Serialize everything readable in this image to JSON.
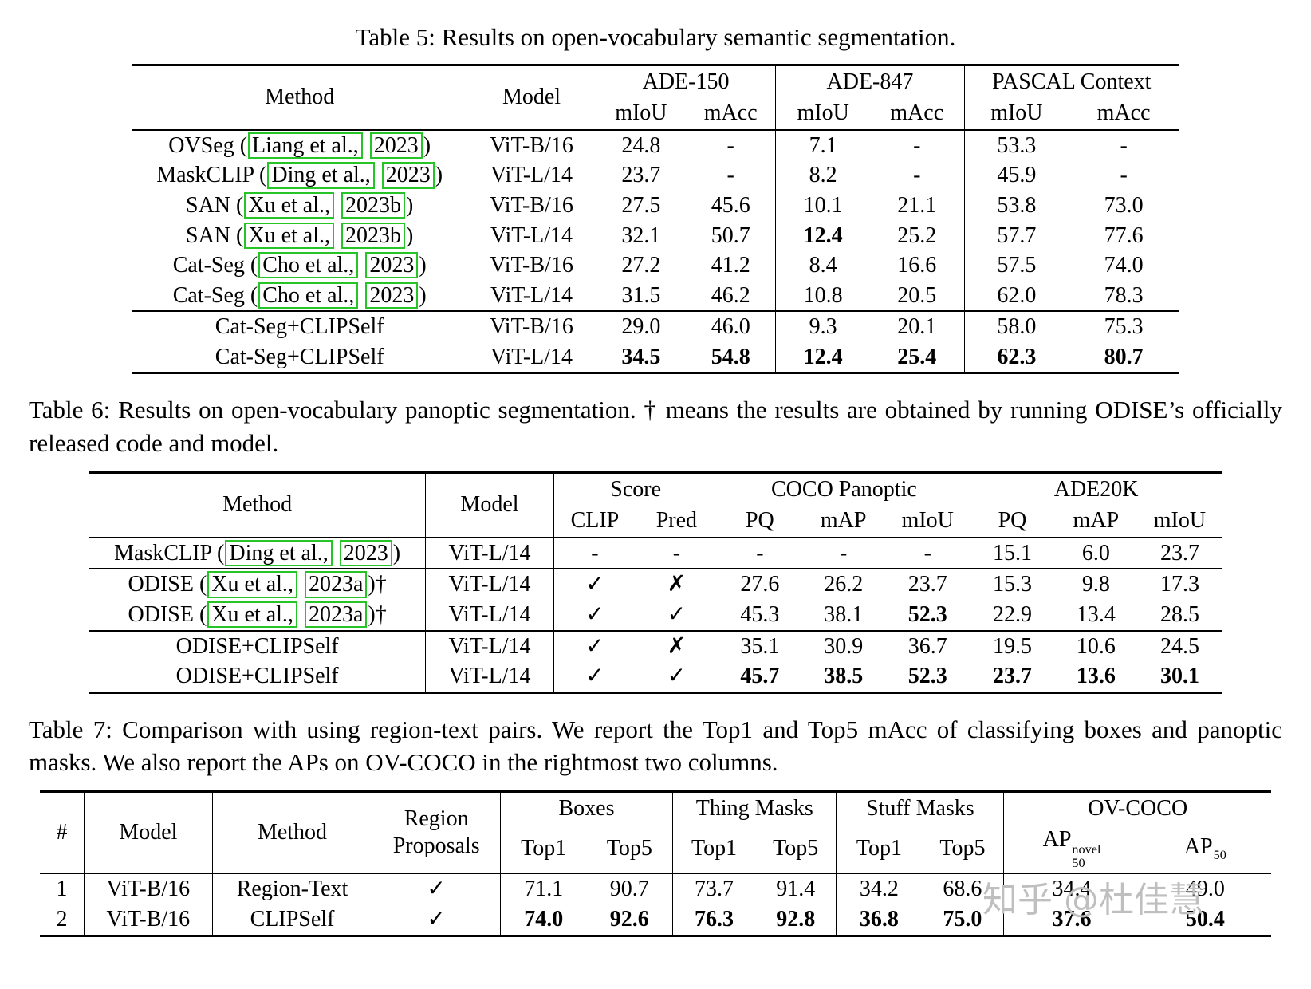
{
  "watermark": "知乎 @杜佳慧",
  "table5": {
    "caption": "Table 5: Results on open-vocabulary semantic segmentation.",
    "columns": [
      {
        "label": "Method"
      },
      {
        "label": "Model"
      },
      {
        "label": "ADE-150",
        "subs": [
          "mIoU",
          "mAcc"
        ]
      },
      {
        "label": "ADE-847",
        "subs": [
          "mIoU",
          "mAcc"
        ]
      },
      {
        "label": "PASCAL Context",
        "subs": [
          "mIoU",
          "mAcc"
        ]
      }
    ],
    "rows": [
      {
        "cells": [
          [
            {
              "t": "OVSeg ("
            },
            {
              "t": "Liang et al.,",
              "box": true
            },
            {
              "t": " "
            },
            {
              "t": "2023",
              "box": true
            },
            {
              "t": ")"
            }
          ],
          "ViT-B/16",
          "24.8",
          "-",
          "7.1",
          "-",
          "53.3",
          "-"
        ]
      },
      {
        "cells": [
          [
            {
              "t": "MaskCLIP ("
            },
            {
              "t": "Ding et al.,",
              "box": true
            },
            {
              "t": " "
            },
            {
              "t": "2023",
              "box": true
            },
            {
              "t": ")"
            }
          ],
          "ViT-L/14",
          "23.7",
          "-",
          "8.2",
          "-",
          "45.9",
          "-"
        ]
      },
      {
        "cells": [
          [
            {
              "t": "SAN ("
            },
            {
              "t": "Xu et al.,",
              "box": true
            },
            {
              "t": " "
            },
            {
              "t": "2023b",
              "box": true
            },
            {
              "t": ")"
            }
          ],
          "ViT-B/16",
          "27.5",
          "45.6",
          "10.1",
          "21.1",
          "53.8",
          "73.0"
        ]
      },
      {
        "cells": [
          [
            {
              "t": "SAN ("
            },
            {
              "t": "Xu et al.,",
              "box": true
            },
            {
              "t": " "
            },
            {
              "t": "2023b",
              "box": true
            },
            {
              "t": ")"
            }
          ],
          "ViT-L/14",
          "32.1",
          "50.7",
          [
            {
              "t": "12.4",
              "b": true
            }
          ],
          "25.2",
          "57.7",
          "77.6"
        ]
      },
      {
        "cells": [
          [
            {
              "t": "Cat-Seg ("
            },
            {
              "t": "Cho et al.,",
              "box": true
            },
            {
              "t": " "
            },
            {
              "t": "2023",
              "box": true
            },
            {
              "t": ")"
            }
          ],
          "ViT-B/16",
          "27.2",
          "41.2",
          "8.4",
          "16.6",
          "57.5",
          "74.0"
        ]
      },
      {
        "cells": [
          [
            {
              "t": "Cat-Seg ("
            },
            {
              "t": "Cho et al.,",
              "box": true
            },
            {
              "t": " "
            },
            {
              "t": "2023",
              "box": true
            },
            {
              "t": ")"
            }
          ],
          "ViT-L/14",
          "31.5",
          "46.2",
          "10.8",
          "20.5",
          "62.0",
          "78.3"
        ]
      },
      {
        "rule": true,
        "cells": [
          "Cat-Seg+CLIPSelf",
          "ViT-B/16",
          "29.0",
          "46.0",
          "9.3",
          "20.1",
          "58.0",
          "75.3"
        ]
      },
      {
        "cells": [
          "Cat-Seg+CLIPSelf",
          "ViT-L/14",
          [
            {
              "t": "34.5",
              "b": true
            }
          ],
          [
            {
              "t": "54.8",
              "b": true
            }
          ],
          [
            {
              "t": "12.4",
              "b": true
            }
          ],
          [
            {
              "t": "25.4",
              "b": true
            }
          ],
          [
            {
              "t": "62.3",
              "b": true
            }
          ],
          [
            {
              "t": "80.7",
              "b": true
            }
          ]
        ]
      }
    ]
  },
  "table6": {
    "caption": "Table 6: Results on open-vocabulary panoptic segmentation. † means the results are obtained by running ODISE’s officially released code and model.",
    "columns": [
      {
        "label": "Method"
      },
      {
        "label": "Model"
      },
      {
        "label": "Score",
        "subs": [
          "CLIP",
          "Pred"
        ]
      },
      {
        "label": "COCO Panoptic",
        "subs": [
          "PQ",
          "mAP",
          "mIoU"
        ]
      },
      {
        "label": "ADE20K",
        "subs": [
          "PQ",
          "mAP",
          "mIoU"
        ]
      }
    ],
    "rows": [
      {
        "cells": [
          [
            {
              "t": "MaskCLIP ("
            },
            {
              "t": "Ding et al.,",
              "box": true
            },
            {
              "t": " "
            },
            {
              "t": "2023",
              "box": true
            },
            {
              "t": ")"
            }
          ],
          "ViT-L/14",
          "-",
          "-",
          "-",
          "-",
          "-",
          "15.1",
          "6.0",
          "23.7"
        ]
      },
      {
        "rule": true,
        "cells": [
          [
            {
              "t": "ODISE ("
            },
            {
              "t": "Xu et al.,",
              "box": true
            },
            {
              "t": " "
            },
            {
              "t": "2023a",
              "box": true
            },
            {
              "t": ")†"
            }
          ],
          "ViT-L/14",
          "✓",
          "✗",
          "27.6",
          "26.2",
          "23.7",
          "15.3",
          "9.8",
          "17.3"
        ]
      },
      {
        "cells": [
          [
            {
              "t": "ODISE ("
            },
            {
              "t": "Xu et al.,",
              "box": true
            },
            {
              "t": " "
            },
            {
              "t": "2023a",
              "box": true
            },
            {
              "t": ")†"
            }
          ],
          "ViT-L/14",
          "✓",
          "✓",
          "45.3",
          "38.1",
          [
            {
              "t": "52.3",
              "b": true
            }
          ],
          "22.9",
          "13.4",
          "28.5"
        ]
      },
      {
        "rule": true,
        "cells": [
          "ODISE+CLIPSelf",
          "ViT-L/14",
          "✓",
          "✗",
          "35.1",
          "30.9",
          "36.7",
          "19.5",
          "10.6",
          "24.5"
        ]
      },
      {
        "cells": [
          "ODISE+CLIPSelf",
          "ViT-L/14",
          "✓",
          "✓",
          [
            {
              "t": "45.7",
              "b": true
            }
          ],
          [
            {
              "t": "38.5",
              "b": true
            }
          ],
          [
            {
              "t": "52.3",
              "b": true
            }
          ],
          [
            {
              "t": "23.7",
              "b": true
            }
          ],
          [
            {
              "t": "13.6",
              "b": true
            }
          ],
          [
            {
              "t": "30.1",
              "b": true
            }
          ]
        ]
      }
    ]
  },
  "table7": {
    "caption": "Table 7: Comparison with using region-text pairs. We report the Top1 and Top5 mAcc of classifying boxes and panoptic masks. We also report the APs on OV-COCO in the rightmost two columns.",
    "columns": [
      {
        "label": "#"
      },
      {
        "label": "Model"
      },
      {
        "label": "Method"
      },
      {
        "label": "Region Proposals"
      },
      {
        "label": "Boxes",
        "subs": [
          "Top1",
          "Top5"
        ]
      },
      {
        "label": "Thing Masks",
        "subs": [
          "Top1",
          "Top5"
        ]
      },
      {
        "label": "Stuff Masks",
        "subs": [
          "Top1",
          "Top5"
        ]
      },
      {
        "label": "OV-COCO",
        "subs": [
          [
            {
              "t": "AP",
              "sup": "novel",
              "sub": "50"
            }
          ],
          [
            {
              "t": "AP",
              "sub": "50"
            }
          ]
        ]
      }
    ],
    "rows": [
      {
        "cells": [
          "1",
          "ViT-B/16",
          "Region-Text",
          "✓",
          "71.1",
          "90.7",
          "73.7",
          "91.4",
          "34.2",
          "68.6",
          "34.4",
          "49.0"
        ]
      },
      {
        "cells": [
          "2",
          "ViT-B/16",
          "CLIPSelf",
          "✓",
          [
            {
              "t": "74.0",
              "b": true
            }
          ],
          [
            {
              "t": "92.6",
              "b": true
            }
          ],
          [
            {
              "t": "76.3",
              "b": true
            }
          ],
          [
            {
              "t": "92.8",
              "b": true
            }
          ],
          [
            {
              "t": "36.8",
              "b": true
            }
          ],
          [
            {
              "t": "75.0",
              "b": true
            }
          ],
          [
            {
              "t": "37.6",
              "b": true
            }
          ],
          [
            {
              "t": "50.4",
              "b": true
            }
          ]
        ]
      }
    ]
  }
}
